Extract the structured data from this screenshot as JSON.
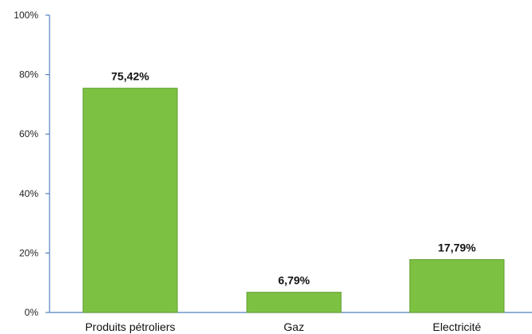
{
  "chart_data": {
    "type": "bar",
    "categories": [
      "Produits pétroliers",
      "Gaz",
      "Electricité"
    ],
    "values": [
      75.42,
      6.79,
      17.79
    ],
    "data_labels": [
      "75,42%",
      "6,79%",
      "17,79%"
    ],
    "yticks": [
      0,
      20,
      40,
      60,
      80,
      100
    ],
    "ytick_labels": [
      "0%",
      "20%",
      "40%",
      "60%",
      "80%",
      "100%"
    ],
    "ylim": [
      0,
      100
    ],
    "grid": false,
    "legend": "none",
    "title": "",
    "xlabel": "",
    "ylabel": "",
    "colors": {
      "bar": "#7dc142",
      "bar_edge": "#5f9e2e",
      "axis": "#4f81bd"
    }
  }
}
